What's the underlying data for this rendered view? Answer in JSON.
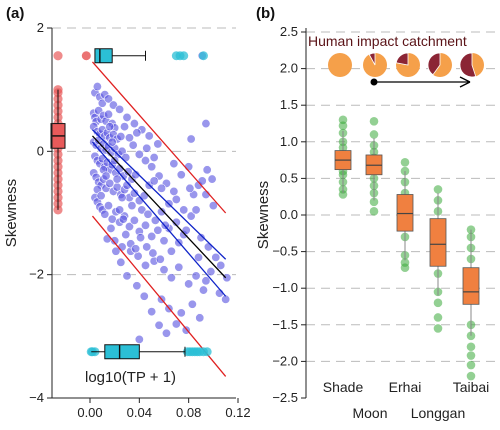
{
  "chart_data": [
    {
      "panel_label": "(a)",
      "type": "scatter",
      "xlabel": "log10(TP + 1)",
      "ylabel": "Skewness",
      "xlim": [
        0,
        0.12
      ],
      "ylim": [
        -4,
        2
      ],
      "xticks": [
        "0.00",
        "0.04",
        "0.08",
        "0.12"
      ],
      "yticks": [
        "−4",
        "−2",
        "0",
        "2"
      ],
      "grid": "horizontal dashed",
      "colors": {
        "points": "#5b55e0",
        "fit": "#000000",
        "ci": "#1024c8",
        "pi": "#e02020",
        "marginal_x": "#2bbfd6",
        "marginal_y": "#e85a5a"
      },
      "points": [
        [
          0.003,
          0.62
        ],
        [
          0.004,
          0.55
        ],
        [
          0.005,
          0.48
        ],
        [
          0.007,
          0.66
        ],
        [
          0.009,
          0.52
        ],
        [
          0.011,
          0.58
        ],
        [
          0.013,
          0.49
        ],
        [
          0.015,
          0.6
        ],
        [
          0.018,
          0.45
        ],
        [
          0.02,
          0.38
        ],
        [
          0.003,
          0.4
        ],
        [
          0.006,
          0.32
        ],
        [
          0.008,
          0.28
        ],
        [
          0.01,
          0.35
        ],
        [
          0.012,
          0.25
        ],
        [
          0.014,
          0.3
        ],
        [
          0.016,
          0.22
        ],
        [
          0.019,
          0.27
        ],
        [
          0.022,
          0.2
        ],
        [
          0.025,
          0.24
        ],
        [
          0.003,
          0.15
        ],
        [
          0.005,
          0.1
        ],
        [
          0.007,
          0.18
        ],
        [
          0.009,
          0.05
        ],
        [
          0.011,
          0.12
        ],
        [
          0.013,
          0.02
        ],
        [
          0.015,
          0.08
        ],
        [
          0.017,
          -0.02
        ],
        [
          0.02,
          0.05
        ],
        [
          0.023,
          -0.05
        ],
        [
          0.026,
          0.0
        ],
        [
          0.029,
          -0.1
        ],
        [
          0.004,
          -0.08
        ],
        [
          0.006,
          -0.15
        ],
        [
          0.008,
          -0.2
        ],
        [
          0.01,
          -0.12
        ],
        [
          0.012,
          -0.25
        ],
        [
          0.014,
          -0.18
        ],
        [
          0.016,
          -0.3
        ],
        [
          0.018,
          -0.22
        ],
        [
          0.021,
          -0.35
        ],
        [
          0.024,
          -0.28
        ],
        [
          0.027,
          -0.4
        ],
        [
          0.031,
          -0.33
        ],
        [
          0.034,
          -0.45
        ],
        [
          0.037,
          -0.38
        ],
        [
          0.003,
          -0.35
        ],
        [
          0.005,
          -0.42
        ],
        [
          0.007,
          -0.5
        ],
        [
          0.009,
          -0.55
        ],
        [
          0.011,
          -0.45
        ],
        [
          0.013,
          -0.6
        ],
        [
          0.016,
          -0.52
        ],
        [
          0.019,
          -0.65
        ],
        [
          0.022,
          -0.58
        ],
        [
          0.025,
          -0.7
        ],
        [
          0.028,
          -0.62
        ],
        [
          0.032,
          -0.75
        ],
        [
          0.036,
          -0.68
        ],
        [
          0.04,
          -0.8
        ],
        [
          0.044,
          -0.72
        ],
        [
          0.004,
          -0.75
        ],
        [
          0.006,
          -0.82
        ],
        [
          0.008,
          -0.9
        ],
        [
          0.01,
          -0.95
        ],
        [
          0.012,
          -1.02
        ],
        [
          0.015,
          -0.88
        ],
        [
          0.018,
          -1.1
        ],
        [
          0.021,
          -0.98
        ],
        [
          0.024,
          -1.15
        ],
        [
          0.028,
          -1.05
        ],
        [
          0.032,
          -1.22
        ],
        [
          0.036,
          -1.12
        ],
        [
          0.04,
          -1.3
        ],
        [
          0.045,
          -1.2
        ],
        [
          0.05,
          -1.38
        ],
        [
          0.055,
          -1.28
        ],
        [
          0.06,
          -1.45
        ],
        [
          0.004,
          0.95
        ],
        [
          0.006,
          1.05
        ],
        [
          0.008,
          0.88
        ],
        [
          0.01,
          0.78
        ],
        [
          0.012,
          0.92
        ],
        [
          0.015,
          0.85
        ],
        [
          0.019,
          0.75
        ],
        [
          0.024,
          0.68
        ],
        [
          0.03,
          0.55
        ],
        [
          0.036,
          0.45
        ],
        [
          0.042,
          0.35
        ],
        [
          0.048,
          0.25
        ],
        [
          0.055,
          0.12
        ],
        [
          0.035,
          0.1
        ],
        [
          0.04,
          -0.05
        ],
        [
          0.045,
          -0.15
        ],
        [
          0.05,
          -0.25
        ],
        [
          0.056,
          -0.4
        ],
        [
          0.062,
          -0.52
        ],
        [
          0.068,
          -0.65
        ],
        [
          0.048,
          -0.55
        ],
        [
          0.052,
          -0.48
        ],
        [
          0.058,
          -0.6
        ],
        [
          0.064,
          -0.85
        ],
        [
          0.07,
          -0.78
        ],
        [
          0.076,
          -0.95
        ],
        [
          0.082,
          -1.05
        ],
        [
          0.042,
          -0.95
        ],
        [
          0.047,
          -1.02
        ],
        [
          0.053,
          -1.12
        ],
        [
          0.058,
          -0.98
        ],
        [
          0.064,
          -1.25
        ],
        [
          0.07,
          -1.15
        ],
        [
          0.076,
          -1.35
        ],
        [
          0.02,
          -1.45
        ],
        [
          0.026,
          -1.55
        ],
        [
          0.033,
          -1.62
        ],
        [
          0.039,
          -1.7
        ],
        [
          0.045,
          -1.85
        ],
        [
          0.052,
          -1.78
        ],
        [
          0.06,
          -1.92
        ],
        [
          0.066,
          -2.05
        ],
        [
          0.072,
          -1.88
        ],
        [
          0.08,
          -2.15
        ],
        [
          0.086,
          -2.02
        ],
        [
          0.092,
          -2.25
        ],
        [
          0.098,
          -1.95
        ],
        [
          0.105,
          -2.3
        ],
        [
          0.11,
          -2.4
        ],
        [
          0.068,
          -0.2
        ],
        [
          0.074,
          -0.38
        ],
        [
          0.08,
          -0.25
        ],
        [
          0.088,
          -0.55
        ],
        [
          0.094,
          -0.7
        ],
        [
          0.1,
          -0.88
        ],
        [
          0.058,
          -2.4
        ],
        [
          0.064,
          -2.55
        ],
        [
          0.074,
          -2.62
        ],
        [
          0.083,
          -2.48
        ],
        [
          0.09,
          -1.4
        ],
        [
          0.096,
          -1.55
        ],
        [
          0.102,
          -1.72
        ],
        [
          0.106,
          -1.85
        ],
        [
          0.111,
          -2.05
        ],
        [
          0.086,
          -0.95
        ],
        [
          0.084,
          -0.7
        ],
        [
          0.081,
          -0.6
        ],
        [
          0.091,
          -0.48
        ],
        [
          0.095,
          -0.3
        ],
        [
          0.099,
          -0.45
        ],
        [
          0.078,
          -1.28
        ],
        [
          0.072,
          -1.48
        ],
        [
          0.066,
          -1.62
        ],
        [
          0.088,
          -1.72
        ],
        [
          0.094,
          -2.1
        ],
        [
          0.032,
          0.22
        ],
        [
          0.038,
          0.3
        ],
        [
          0.028,
          0.4
        ],
        [
          0.046,
          0.05
        ],
        [
          0.052,
          -0.1
        ],
        [
          0.03,
          -0.55
        ],
        [
          0.034,
          -0.88
        ],
        [
          0.026,
          -0.75
        ],
        [
          0.017,
          -1.25
        ],
        [
          0.014,
          -1.42
        ],
        [
          0.021,
          -1.62
        ],
        [
          0.025,
          -1.8
        ],
        [
          0.03,
          -2.02
        ],
        [
          0.038,
          -2.18
        ],
        [
          0.044,
          -2.35
        ],
        [
          0.05,
          -2.6
        ],
        [
          0.056,
          -2.82
        ],
        [
          0.062,
          -2.95
        ],
        [
          0.04,
          -3.05
        ],
        [
          0.07,
          -2.8
        ],
        [
          0.078,
          -2.9
        ],
        [
          0.089,
          -2.7
        ],
        [
          0.094,
          0.45
        ],
        [
          0.082,
          0.2
        ],
        [
          0.091,
          1.55
        ],
        [
          0.006,
          -0.62
        ],
        [
          0.009,
          -0.72
        ],
        [
          0.011,
          -0.3
        ],
        [
          0.013,
          -0.4
        ],
        [
          0.016,
          0.4
        ],
        [
          0.018,
          0.15
        ],
        [
          0.02,
          -0.15
        ],
        [
          0.022,
          -0.45
        ],
        [
          0.024,
          -0.95
        ],
        [
          0.027,
          -1.1
        ],
        [
          0.029,
          -1.35
        ],
        [
          0.033,
          -1.5
        ],
        [
          0.037,
          -1.58
        ],
        [
          0.041,
          -1.4
        ],
        [
          0.046,
          -1.55
        ],
        [
          0.051,
          -1.65
        ],
        [
          0.057,
          -1.75
        ],
        [
          0.061,
          -1.2
        ]
      ],
      "fit_line": {
        "x": [
          0.002,
          0.11
        ],
        "y": [
          0.25,
          -2.05
        ]
      },
      "ci_upper": {
        "x": [
          0.002,
          0.11
        ],
        "y": [
          0.35,
          -1.75
        ]
      },
      "ci_lower": {
        "x": [
          0.002,
          0.11
        ],
        "y": [
          0.15,
          -2.35
        ]
      },
      "pi_upper": {
        "x": [
          0.002,
          0.11
        ],
        "y": [
          1.45,
          -1.0
        ]
      },
      "pi_lower": {
        "x": [
          0.002,
          0.11
        ],
        "y": [
          -1.05,
          -3.65
        ]
      },
      "x_marginal_box": {
        "y_position": -3.25,
        "min": 0.001,
        "q1": 0.012,
        "median": 0.024,
        "q3": 0.04,
        "max": 0.077,
        "points": [
          0.001,
          0.002,
          0.004,
          0.079,
          0.081,
          0.083,
          0.085,
          0.087,
          0.089,
          0.092,
          0.095
        ]
      },
      "y_marginal_box": {
        "x_position": -0.002,
        "min": -0.95,
        "q1": 0.05,
        "median": 0.25,
        "q3": 0.45,
        "max": 1.0,
        "points": [
          1.55,
          1.0,
          0.95,
          0.85,
          0.75,
          0.65,
          0.55,
          0.45,
          0.35,
          0.25,
          0.15,
          0.05,
          -0.05,
          -0.15,
          -0.25,
          -0.35,
          -0.45,
          -0.55,
          -0.65,
          -0.75,
          -0.85,
          -0.95
        ]
      },
      "top_marginal_points": [
        0.07,
        0.073,
        0.076,
        0.092
      ],
      "top_box": {
        "y_position": 1.55,
        "min": -0.003,
        "q1": 0.004,
        "median": 0.008,
        "q3": 0.018,
        "max": 0.045
      }
    },
    {
      "panel_label": "(b)",
      "type": "box",
      "ylabel": "Skewness",
      "ylim": [
        -2.5,
        2.5
      ],
      "yticks": [
        "−2.5",
        "−2.0",
        "−1.5",
        "−1.0",
        "−0.5",
        "0.0",
        "0.5",
        "1.0",
        "1.5",
        "2.0",
        "2.5"
      ],
      "grid": "horizontal dashed",
      "categories": [
        "Shade",
        "Moon",
        "Erhai",
        "Longgan",
        "Taibai"
      ],
      "boxes": [
        {
          "name": "Shade",
          "min": 0.3,
          "q1": 0.62,
          "median": 0.75,
          "q3": 0.88,
          "max": 1.15,
          "points": [
            1.3,
            1.22,
            1.12,
            1.0,
            0.92,
            0.8,
            0.72,
            0.6,
            0.55,
            0.45,
            0.35,
            0.28
          ]
        },
        {
          "name": "Moon",
          "min": 0.2,
          "q1": 0.55,
          "median": 0.68,
          "q3": 0.82,
          "max": 1.05,
          "points": [
            1.28,
            1.1,
            0.95,
            0.86,
            0.78,
            0.62,
            0.5,
            0.4,
            0.3,
            0.18,
            0.05
          ]
        },
        {
          "name": "Erhai",
          "min": -0.62,
          "q1": -0.22,
          "median": 0.02,
          "q3": 0.28,
          "max": 0.6,
          "points": [
            0.72,
            0.6,
            0.45,
            0.3,
            0.1,
            -0.1,
            -0.3,
            -0.55,
            -0.65,
            -0.72
          ]
        },
        {
          "name": "Longgan",
          "min": -1.1,
          "q1": -0.7,
          "median": -0.4,
          "q3": -0.05,
          "max": 0.3,
          "points": [
            0.35,
            0.2,
            0.05,
            -0.2,
            -0.55,
            -0.8,
            -1.05,
            -1.2,
            -1.4,
            -1.55
          ]
        },
        {
          "name": "Taibai",
          "min": -1.65,
          "q1": -1.22,
          "median": -1.05,
          "q3": -0.72,
          "max": -0.2,
          "points": [
            -0.2,
            -0.3,
            -0.45,
            -0.6,
            -0.85,
            -1.5,
            -1.65,
            -1.8,
            -1.92,
            -2.05,
            -2.2
          ]
        }
      ],
      "colors": {
        "box": "#f08040",
        "points": "#3aaa3a",
        "impact_pie_light": "#f5a04a",
        "impact_pie_dark": "#8b2535"
      },
      "annotation": "Human impact catchment",
      "impact_pies": [
        0.0,
        0.08,
        0.22,
        0.4,
        0.55
      ]
    }
  ]
}
